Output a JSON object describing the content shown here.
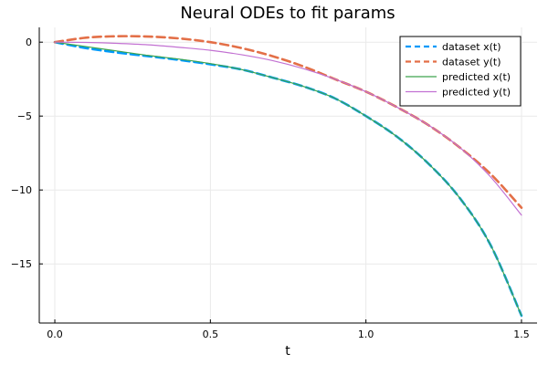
{
  "chart_data": {
    "type": "line",
    "title": "Neural ODEs to fit params",
    "xlabel": "t",
    "ylabel": "",
    "xlim": [
      -0.05,
      1.55
    ],
    "ylim": [
      -19.0,
      1.0
    ],
    "xticks": [
      0.0,
      0.5,
      1.0,
      1.5
    ],
    "xtick_labels": [
      "0.0",
      "0.5",
      "1.0",
      "1.5"
    ],
    "yticks": [
      0,
      -5,
      -10,
      -15
    ],
    "ytick_labels": [
      "0",
      "−5",
      "−10",
      "−15"
    ],
    "grid": true,
    "legend_position": "top-right",
    "x": [
      0.0,
      0.1,
      0.2,
      0.3,
      0.4,
      0.5,
      0.6,
      0.7,
      0.8,
      0.9,
      1.0,
      1.1,
      1.2,
      1.3,
      1.4,
      1.5
    ],
    "series": [
      {
        "name": "dataset x(t)",
        "style": "dashed",
        "color": "#009AFA",
        "values": [
          0.0,
          -0.4,
          -0.7,
          -0.95,
          -1.2,
          -1.5,
          -1.85,
          -2.4,
          -3.0,
          -3.8,
          -5.0,
          -6.4,
          -8.2,
          -10.5,
          -13.7,
          -18.5
        ]
      },
      {
        "name": "dataset y(t)",
        "style": "dashed",
        "color": "#E36F47",
        "values": [
          0.0,
          0.3,
          0.4,
          0.38,
          0.25,
          0.0,
          -0.4,
          -0.95,
          -1.65,
          -2.5,
          -3.35,
          -4.4,
          -5.6,
          -7.1,
          -8.9,
          -11.2
        ]
      },
      {
        "name": "predicted x(t)",
        "style": "solid",
        "color": "#3EA44E",
        "values": [
          0.0,
          -0.3,
          -0.6,
          -0.9,
          -1.15,
          -1.45,
          -1.85,
          -2.4,
          -3.0,
          -3.8,
          -5.0,
          -6.4,
          -8.2,
          -10.5,
          -13.7,
          -18.5
        ]
      },
      {
        "name": "predicted y(t)",
        "style": "solid",
        "color": "#C271D2",
        "values": [
          0.0,
          -0.02,
          -0.08,
          -0.18,
          -0.35,
          -0.55,
          -0.85,
          -1.25,
          -1.8,
          -2.5,
          -3.35,
          -4.4,
          -5.6,
          -7.1,
          -9.1,
          -11.7
        ]
      }
    ]
  }
}
